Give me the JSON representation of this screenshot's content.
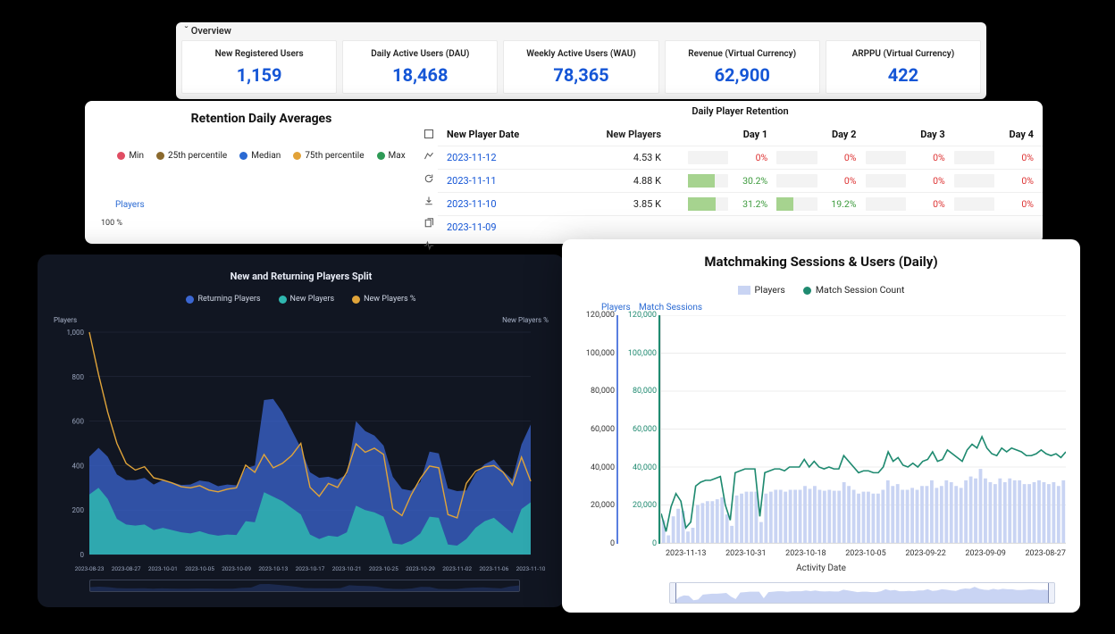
{
  "colors": {
    "overview_bg": "#f5f5f5",
    "card_bg": "#ffffff",
    "value_blue": "#1556d6",
    "link_blue": "#1556d6",
    "zero_red": "#d33333",
    "nonzero_green": "#3c9a3c",
    "bar_fill_green": "#a6d38f",
    "dark_bg": "#111622",
    "dark_text": "#cfd6e4",
    "grid_dark": "#2a3145",
    "grid_light": "#ececec",
    "players_bar": "#c9d4f3",
    "sessions_line": "#1f8a70",
    "axis_blue_border": "#5a7fe0",
    "axis_green_border": "#1f8a70"
  },
  "overview": {
    "title": "ˇ Overview",
    "cards": [
      {
        "label": "New Registered Users",
        "value": "1,159"
      },
      {
        "label": "Daily Active Users (DAU)",
        "value": "18,468"
      },
      {
        "label": "Weekly Active Users (WAU)",
        "value": "78,365"
      },
      {
        "label": "Revenue (Virtual Currency)",
        "value": "62,900"
      },
      {
        "label": "ARPPU (Virtual Currency)",
        "value": "422"
      }
    ]
  },
  "retention_averages": {
    "title": "Retention Daily Averages",
    "y_axis_label": "Players",
    "y_axis_top_tick": "100 %",
    "legend": [
      {
        "label": "Min",
        "color": "#e04d63"
      },
      {
        "label": "25th percentile",
        "color": "#8b6a2e"
      },
      {
        "label": "Median",
        "color": "#2a6ad3"
      },
      {
        "label": "75th percentile",
        "color": "#e2a238"
      },
      {
        "label": "Max",
        "color": "#2e9a56"
      }
    ]
  },
  "retention_table": {
    "title": "Daily Player Retention",
    "columns": [
      "New Player Date",
      "New Players",
      "Day 1",
      "Day 2",
      "Day 3",
      "Day 4"
    ],
    "rows": [
      {
        "date": "2023-11-12",
        "new_players": "4.53 K",
        "days": [
          0,
          0,
          0,
          0
        ]
      },
      {
        "date": "2023-11-11",
        "new_players": "4.88 K",
        "days": [
          30.2,
          0,
          0,
          0
        ]
      },
      {
        "date": "2023-11-10",
        "new_players": "3.85 K",
        "days": [
          31.2,
          19.2,
          0,
          0
        ]
      },
      {
        "date": "2023-11-09",
        "new_players": "",
        "days": [
          null,
          null,
          null,
          null
        ]
      }
    ]
  },
  "dark_chart": {
    "title": "New and Returning Players Split",
    "legend": [
      {
        "label": "Returning Players",
        "color": "#3b66d1"
      },
      {
        "label": "New Players",
        "color": "#2fb7b0"
      },
      {
        "label": "New Players %",
        "color": "#e0a43a"
      }
    ],
    "y_axis_left_label": "Players",
    "y_axis_right_label": "New Players %",
    "y_ticks": [
      0,
      200,
      400,
      600,
      800,
      1000
    ],
    "x_dates": [
      "2023-08-23",
      "2023-08-27",
      "2023-10-01",
      "2023-10-05",
      "2023-10-09",
      "2023-10-13",
      "2023-10-17",
      "2023-10-21",
      "2023-10-25",
      "2023-10-29",
      "2023-11-02",
      "2023-11-06",
      "2023-11-10"
    ],
    "series": {
      "returning_players_area": {
        "color": "#3b66d1",
        "values": [
          170,
          180,
          190,
          200,
          200,
          205,
          210,
          205,
          215,
          215,
          213,
          220,
          228,
          235,
          222,
          225,
          223,
          238,
          255,
          415,
          440,
          400,
          350,
          300,
          280,
          275,
          265,
          258,
          260,
          380,
          355,
          345,
          320,
          300,
          250,
          225,
          232,
          293,
          290,
          252,
          245,
          218,
          245,
          256,
          262,
          245,
          243,
          290,
          350
        ]
      },
      "new_players_area": {
        "color": "#2fb7b0",
        "values": [
          270,
          300,
          250,
          160,
          135,
          130,
          135,
          110,
          120,
          110,
          100,
          95,
          105,
          92,
          85,
          90,
          88,
          150,
          145,
          280,
          260,
          240,
          210,
          180,
          90,
          70,
          85,
          80,
          100,
          220,
          200,
          190,
          170,
          50,
          45,
          62,
          95,
          170,
          165,
          45,
          40,
          70,
          120,
          150,
          165,
          130,
          95,
          205,
          235
        ]
      },
      "new_players_pct_line": {
        "color": "#e0a43a",
        "values": [
          1000,
          810,
          640,
          500,
          410,
          380,
          395,
          345,
          335,
          322,
          305,
          300,
          310,
          290,
          282,
          294,
          300,
          402,
          370,
          450,
          390,
          410,
          445,
          500,
          302,
          262,
          320,
          302,
          370,
          498,
          460,
          478,
          450,
          205,
          175,
          268,
          342,
          398,
          390,
          180,
          165,
          320,
          375,
          395,
          400,
          370,
          312,
          438,
          330
        ]
      }
    }
  },
  "sessions_chart": {
    "title": "Matchmaking Sessions & Users (Daily)",
    "legend": [
      {
        "label": "Players",
        "swatch": "#c9d4f3",
        "type": "box"
      },
      {
        "label": "Match Session Count",
        "swatch": "#1f8a70",
        "type": "dot"
      }
    ],
    "y_left_label": "Players",
    "y_right_label": "Match Sessions",
    "y_ticks": [
      "120,000",
      "100,000",
      "80,000",
      "60,000",
      "40,000",
      "20,000",
      "0"
    ],
    "y_max": 120000,
    "x_dates": [
      "2023-11-13",
      "2023-10-31",
      "2023-10-18",
      "2023-10-05",
      "2023-09-22",
      "2023-09-09",
      "2023-08-27"
    ],
    "x_label": "Activity Date",
    "bars_players": [
      12000,
      4000,
      14000,
      18000,
      17000,
      6000,
      8000,
      20000,
      21000,
      22000,
      22000,
      23000,
      24000,
      15000,
      9000,
      25000,
      26000,
      27000,
      27000,
      27000,
      11000,
      26000,
      27000,
      28000,
      28000,
      27000,
      28000,
      28000,
      28000,
      30000,
      28500,
      30000,
      28000,
      27500,
      28000,
      27500,
      27500,
      32000,
      30000,
      28000,
      26000,
      27000,
      27000,
      26000,
      26000,
      28000,
      33000,
      30000,
      31000,
      28000,
      28000,
      29000,
      28000,
      30000,
      30000,
      33000,
      29000,
      30000,
      33000,
      32000,
      30000,
      29000,
      33000,
      35000,
      34000,
      39000,
      34000,
      32000,
      31000,
      34000,
      32000,
      34000,
      33000,
      33000,
      31000,
      31000,
      32000,
      33000,
      32000,
      31000,
      32000,
      30000,
      33000
    ],
    "line_sessions": [
      15500,
      6000,
      19000,
      26000,
      22000,
      8000,
      11000,
      30000,
      32000,
      33000,
      33000,
      34000,
      35000,
      20000,
      12000,
      37000,
      38000,
      39000,
      39000,
      39000,
      14000,
      37000,
      38000,
      39000,
      39000,
      38000,
      40000,
      40000,
      40000,
      44000,
      40000,
      43000,
      40000,
      39000,
      40000,
      39000,
      39000,
      46000,
      43000,
      40000,
      37000,
      38000,
      38000,
      37000,
      37000,
      40000,
      48000,
      43000,
      45000,
      41000,
      40000,
      42000,
      40000,
      43000,
      44000,
      48000,
      43000,
      44000,
      49000,
      47000,
      45000,
      43000,
      49000,
      52000,
      50000,
      56000,
      50000,
      47000,
      46000,
      50000,
      48000,
      50000,
      49000,
      48000,
      46000,
      46000,
      47000,
      49000,
      47000,
      46000,
      47000,
      45000,
      48000
    ]
  }
}
